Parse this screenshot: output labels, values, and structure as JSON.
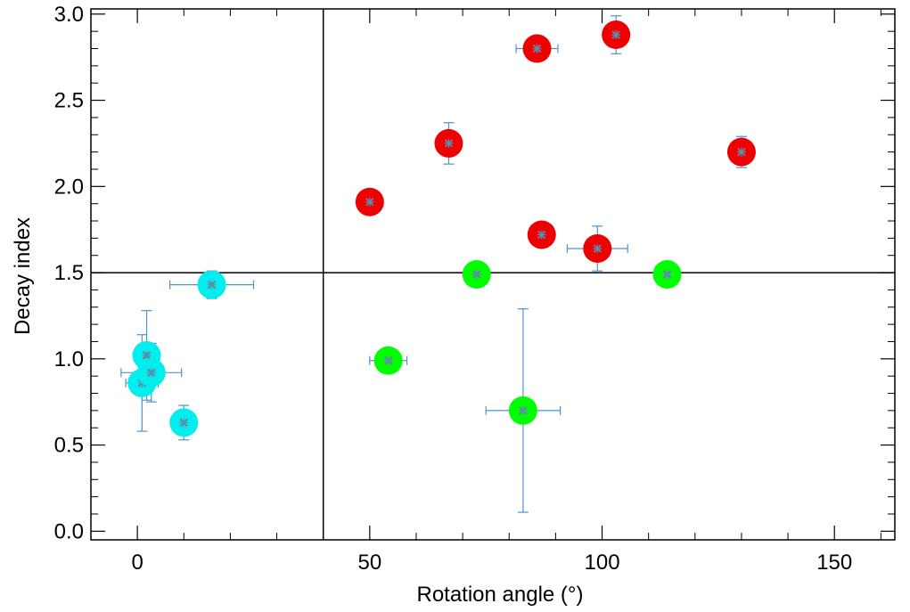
{
  "chart_data": {
    "type": "scatter",
    "xlabel": "Rotation angle (°)",
    "ylabel": "Decay index",
    "xlim": [
      -10,
      163
    ],
    "ylim": [
      -0.05,
      3.03
    ],
    "xticks": [
      0,
      50,
      100,
      150
    ],
    "xtick_labels": [
      "0",
      "50",
      "100",
      "150"
    ],
    "yticks": [
      0.0,
      0.5,
      1.0,
      1.5,
      2.0,
      2.5,
      3.0
    ],
    "ytick_labels": [
      "0.0",
      "0.5",
      "1.0",
      "1.5",
      "2.0",
      "2.5",
      "3.0"
    ],
    "x_minor_step": 10,
    "y_minor_step": 0.1,
    "grid": false,
    "reference_lines": {
      "x": 40,
      "y": 1.5
    },
    "colors": {
      "red": "#ee0000",
      "green": "#00ff00",
      "cyan": "#00eeee",
      "errorbar": "#4f94cd",
      "marker": "#708090"
    },
    "series": [
      {
        "color": "#ee0000",
        "points": [
          {
            "x": 50,
            "y": 1.91,
            "xerr": 1.5,
            "yerr": 0.02
          },
          {
            "x": 67,
            "y": 2.25,
            "xerr": 2.5,
            "yerr": 0.12
          },
          {
            "x": 86,
            "y": 2.8,
            "xerr": 4.5,
            "yerr": 0.04
          },
          {
            "x": 87,
            "y": 1.72,
            "xerr": 1.5,
            "yerr": 0.04
          },
          {
            "x": 99,
            "y": 1.64,
            "xerr": 6.5,
            "yerr": 0.13
          },
          {
            "x": 103,
            "y": 2.88,
            "xerr": 1.0,
            "yerr": 0.11
          },
          {
            "x": 130,
            "y": 2.2,
            "xerr": 1.5,
            "yerr": 0.09
          }
        ]
      },
      {
        "color": "#00ff00",
        "points": [
          {
            "x": 54,
            "y": 0.99,
            "xerr": 4.0,
            "yerr": 0.07
          },
          {
            "x": 73,
            "y": 1.49,
            "xerr": 2.5,
            "yerr": 0.02
          },
          {
            "x": 83,
            "y": 0.7,
            "xerr": 8.0,
            "yerr": 0.59
          },
          {
            "x": 114,
            "y": 1.49,
            "xerr": 2.0,
            "yerr": 0.02
          }
        ]
      },
      {
        "color": "#00eeee",
        "points": [
          {
            "x": 1,
            "y": 0.86,
            "xerr": 3.5,
            "yerr": 0.28
          },
          {
            "x": 2,
            "y": 1.02,
            "xerr": 1.0,
            "yerr": 0.26
          },
          {
            "x": 3,
            "y": 0.92,
            "xerr": 6.5,
            "yerr": 0.17
          },
          {
            "x": 10,
            "y": 0.63,
            "xerr": 1.0,
            "yerr": 0.1
          },
          {
            "x": 16,
            "y": 1.43,
            "xerr": 9.0,
            "yerr": 0.08
          }
        ]
      }
    ]
  }
}
